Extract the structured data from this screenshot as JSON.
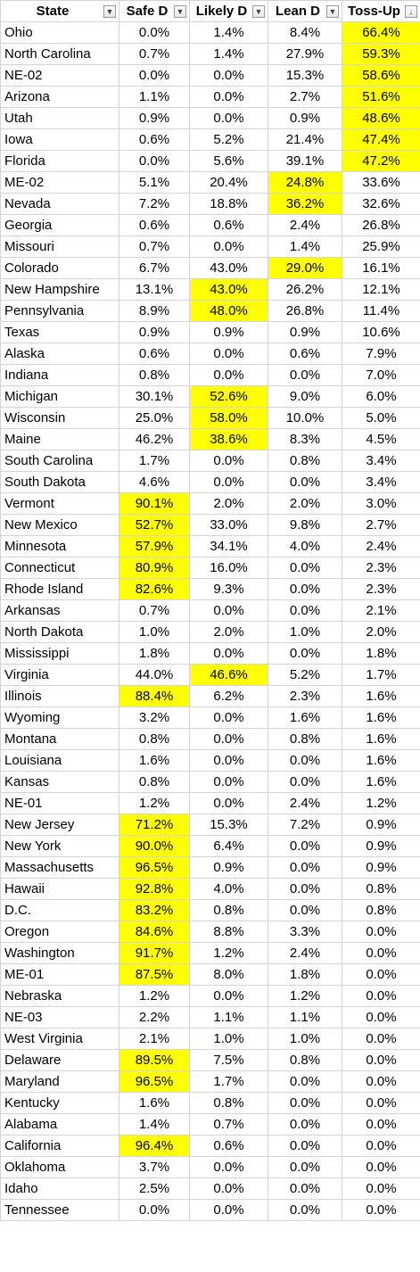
{
  "highlight_color": "#ffff00",
  "columns": [
    {
      "label": "State",
      "filter_icon": "dropdown-arrow-icon"
    },
    {
      "label": "Safe D",
      "filter_icon": "dropdown-arrow-icon"
    },
    {
      "label": "Likely D",
      "filter_icon": "dropdown-arrow-icon"
    },
    {
      "label": "Lean D",
      "filter_icon": "dropdown-arrow-icon"
    },
    {
      "label": "Toss-Up",
      "filter_icon": "sort-descending-filter-icon"
    }
  ],
  "rows": [
    {
      "state": "Ohio",
      "values": [
        "0.0%",
        "1.4%",
        "8.4%",
        "66.4%"
      ],
      "highlight": [
        3
      ]
    },
    {
      "state": "North Carolina",
      "values": [
        "0.7%",
        "1.4%",
        "27.9%",
        "59.3%"
      ],
      "highlight": [
        3
      ]
    },
    {
      "state": "NE-02",
      "values": [
        "0.0%",
        "0.0%",
        "15.3%",
        "58.6%"
      ],
      "highlight": [
        3
      ]
    },
    {
      "state": "Arizona",
      "values": [
        "1.1%",
        "0.0%",
        "2.7%",
        "51.6%"
      ],
      "highlight": [
        3
      ]
    },
    {
      "state": "Utah",
      "values": [
        "0.9%",
        "0.0%",
        "0.9%",
        "48.6%"
      ],
      "highlight": [
        3
      ]
    },
    {
      "state": "Iowa",
      "values": [
        "0.6%",
        "5.2%",
        "21.4%",
        "47.4%"
      ],
      "highlight": [
        3
      ]
    },
    {
      "state": "Florida",
      "values": [
        "0.0%",
        "5.6%",
        "39.1%",
        "47.2%"
      ],
      "highlight": [
        3
      ]
    },
    {
      "state": "ME-02",
      "values": [
        "5.1%",
        "20.4%",
        "24.8%",
        "33.6%"
      ],
      "highlight": [
        2
      ]
    },
    {
      "state": "Nevada",
      "values": [
        "7.2%",
        "18.8%",
        "36.2%",
        "32.6%"
      ],
      "highlight": [
        2
      ]
    },
    {
      "state": "Georgia",
      "values": [
        "0.6%",
        "0.6%",
        "2.4%",
        "26.8%"
      ],
      "highlight": []
    },
    {
      "state": "Missouri",
      "values": [
        "0.7%",
        "0.0%",
        "1.4%",
        "25.9%"
      ],
      "highlight": []
    },
    {
      "state": "Colorado",
      "values": [
        "6.7%",
        "43.0%",
        "29.0%",
        "16.1%"
      ],
      "highlight": [
        2
      ]
    },
    {
      "state": "New Hampshire",
      "values": [
        "13.1%",
        "43.0%",
        "26.2%",
        "12.1%"
      ],
      "highlight": [
        1
      ]
    },
    {
      "state": "Pennsylvania",
      "values": [
        "8.9%",
        "48.0%",
        "26.8%",
        "11.4%"
      ],
      "highlight": [
        1
      ]
    },
    {
      "state": "Texas",
      "values": [
        "0.9%",
        "0.9%",
        "0.9%",
        "10.6%"
      ],
      "highlight": []
    },
    {
      "state": "Alaska",
      "values": [
        "0.6%",
        "0.0%",
        "0.6%",
        "7.9%"
      ],
      "highlight": []
    },
    {
      "state": "Indiana",
      "values": [
        "0.8%",
        "0.0%",
        "0.0%",
        "7.0%"
      ],
      "highlight": []
    },
    {
      "state": "Michigan",
      "values": [
        "30.1%",
        "52.6%",
        "9.0%",
        "6.0%"
      ],
      "highlight": [
        1
      ]
    },
    {
      "state": "Wisconsin",
      "values": [
        "25.0%",
        "58.0%",
        "10.0%",
        "5.0%"
      ],
      "highlight": [
        1
      ]
    },
    {
      "state": "Maine",
      "values": [
        "46.2%",
        "38.6%",
        "8.3%",
        "4.5%"
      ],
      "highlight": [
        1
      ]
    },
    {
      "state": "South Carolina",
      "values": [
        "1.7%",
        "0.0%",
        "0.8%",
        "3.4%"
      ],
      "highlight": []
    },
    {
      "state": "South Dakota",
      "values": [
        "4.6%",
        "0.0%",
        "0.0%",
        "3.4%"
      ],
      "highlight": []
    },
    {
      "state": "Vermont",
      "values": [
        "90.1%",
        "2.0%",
        "2.0%",
        "3.0%"
      ],
      "highlight": [
        0
      ]
    },
    {
      "state": "New Mexico",
      "values": [
        "52.7%",
        "33.0%",
        "9.8%",
        "2.7%"
      ],
      "highlight": [
        0
      ]
    },
    {
      "state": "Minnesota",
      "values": [
        "57.9%",
        "34.1%",
        "4.0%",
        "2.4%"
      ],
      "highlight": [
        0
      ]
    },
    {
      "state": "Connecticut",
      "values": [
        "80.9%",
        "16.0%",
        "0.0%",
        "2.3%"
      ],
      "highlight": [
        0
      ]
    },
    {
      "state": "Rhode Island",
      "values": [
        "82.6%",
        "9.3%",
        "0.0%",
        "2.3%"
      ],
      "highlight": [
        0
      ]
    },
    {
      "state": "Arkansas",
      "values": [
        "0.7%",
        "0.0%",
        "0.0%",
        "2.1%"
      ],
      "highlight": []
    },
    {
      "state": "North Dakota",
      "values": [
        "1.0%",
        "2.0%",
        "1.0%",
        "2.0%"
      ],
      "highlight": []
    },
    {
      "state": "Mississippi",
      "values": [
        "1.8%",
        "0.0%",
        "0.0%",
        "1.8%"
      ],
      "highlight": []
    },
    {
      "state": "Virginia",
      "values": [
        "44.0%",
        "46.6%",
        "5.2%",
        "1.7%"
      ],
      "highlight": [
        1
      ]
    },
    {
      "state": "Illinois",
      "values": [
        "88.4%",
        "6.2%",
        "2.3%",
        "1.6%"
      ],
      "highlight": [
        0
      ]
    },
    {
      "state": "Wyoming",
      "values": [
        "3.2%",
        "0.0%",
        "1.6%",
        "1.6%"
      ],
      "highlight": []
    },
    {
      "state": "Montana",
      "values": [
        "0.8%",
        "0.0%",
        "0.8%",
        "1.6%"
      ],
      "highlight": []
    },
    {
      "state": "Louisiana",
      "values": [
        "1.6%",
        "0.0%",
        "0.0%",
        "1.6%"
      ],
      "highlight": []
    },
    {
      "state": "Kansas",
      "values": [
        "0.8%",
        "0.0%",
        "0.0%",
        "1.6%"
      ],
      "highlight": []
    },
    {
      "state": "NE-01",
      "values": [
        "1.2%",
        "0.0%",
        "2.4%",
        "1.2%"
      ],
      "highlight": []
    },
    {
      "state": "New Jersey",
      "values": [
        "71.2%",
        "15.3%",
        "7.2%",
        "0.9%"
      ],
      "highlight": [
        0
      ]
    },
    {
      "state": "New York",
      "values": [
        "90.0%",
        "6.4%",
        "0.0%",
        "0.9%"
      ],
      "highlight": [
        0
      ]
    },
    {
      "state": "Massachusetts",
      "values": [
        "96.5%",
        "0.9%",
        "0.0%",
        "0.9%"
      ],
      "highlight": [
        0
      ]
    },
    {
      "state": "Hawaii",
      "values": [
        "92.8%",
        "4.0%",
        "0.0%",
        "0.8%"
      ],
      "highlight": [
        0
      ]
    },
    {
      "state": "D.C.",
      "values": [
        "83.2%",
        "0.8%",
        "0.0%",
        "0.8%"
      ],
      "highlight": [
        0
      ]
    },
    {
      "state": "Oregon",
      "values": [
        "84.6%",
        "8.8%",
        "3.3%",
        "0.0%"
      ],
      "highlight": [
        0
      ]
    },
    {
      "state": "Washington",
      "values": [
        "91.7%",
        "1.2%",
        "2.4%",
        "0.0%"
      ],
      "highlight": [
        0
      ]
    },
    {
      "state": "ME-01",
      "values": [
        "87.5%",
        "8.0%",
        "1.8%",
        "0.0%"
      ],
      "highlight": [
        0
      ]
    },
    {
      "state": "Nebraska",
      "values": [
        "1.2%",
        "0.0%",
        "1.2%",
        "0.0%"
      ],
      "highlight": []
    },
    {
      "state": "NE-03",
      "values": [
        "2.2%",
        "1.1%",
        "1.1%",
        "0.0%"
      ],
      "highlight": []
    },
    {
      "state": "West Virginia",
      "values": [
        "2.1%",
        "1.0%",
        "1.0%",
        "0.0%"
      ],
      "highlight": []
    },
    {
      "state": "Delaware",
      "values": [
        "89.5%",
        "7.5%",
        "0.8%",
        "0.0%"
      ],
      "highlight": [
        0
      ]
    },
    {
      "state": "Maryland",
      "values": [
        "96.5%",
        "1.7%",
        "0.0%",
        "0.0%"
      ],
      "highlight": [
        0
      ]
    },
    {
      "state": "Kentucky",
      "values": [
        "1.6%",
        "0.8%",
        "0.0%",
        "0.0%"
      ],
      "highlight": []
    },
    {
      "state": "Alabama",
      "values": [
        "1.4%",
        "0.7%",
        "0.0%",
        "0.0%"
      ],
      "highlight": []
    },
    {
      "state": "California",
      "values": [
        "96.4%",
        "0.6%",
        "0.0%",
        "0.0%"
      ],
      "highlight": [
        0
      ]
    },
    {
      "state": "Oklahoma",
      "values": [
        "3.7%",
        "0.0%",
        "0.0%",
        "0.0%"
      ],
      "highlight": []
    },
    {
      "state": "Idaho",
      "values": [
        "2.5%",
        "0.0%",
        "0.0%",
        "0.0%"
      ],
      "highlight": []
    },
    {
      "state": "Tennessee",
      "values": [
        "0.0%",
        "0.0%",
        "0.0%",
        "0.0%"
      ],
      "highlight": []
    }
  ]
}
